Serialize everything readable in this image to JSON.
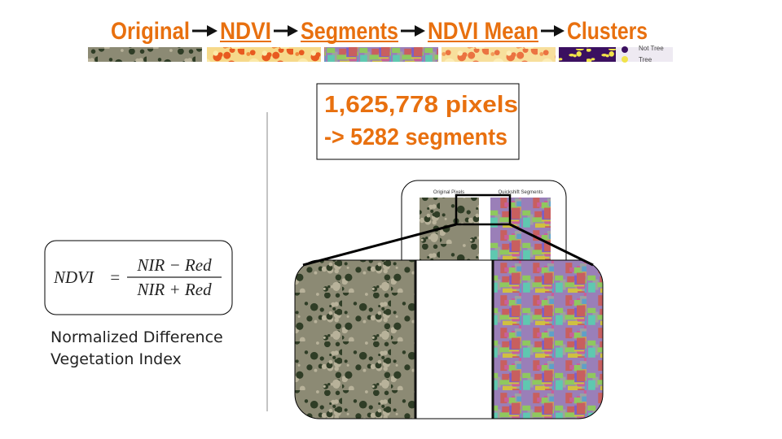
{
  "pipeline": {
    "steps": [
      "Original",
      "NDVI",
      "Segments",
      "NDVI Mean",
      "Clusters"
    ]
  },
  "legend": {
    "items": [
      "Not Tree",
      "Tree"
    ]
  },
  "callout": {
    "lines": [
      "1,625,778 pixels",
      "-> 5282 segments"
    ]
  },
  "formula": {
    "lhs": "NDVI",
    "eq": "=",
    "numerator": "NIR − Red",
    "denominator": "NIR + Red"
  },
  "caption": {
    "lines": [
      "Normalized Difference",
      "Vegetation Index"
    ]
  },
  "figure": {
    "labels": [
      "Original Pixels",
      "Quickshift Segments"
    ]
  }
}
